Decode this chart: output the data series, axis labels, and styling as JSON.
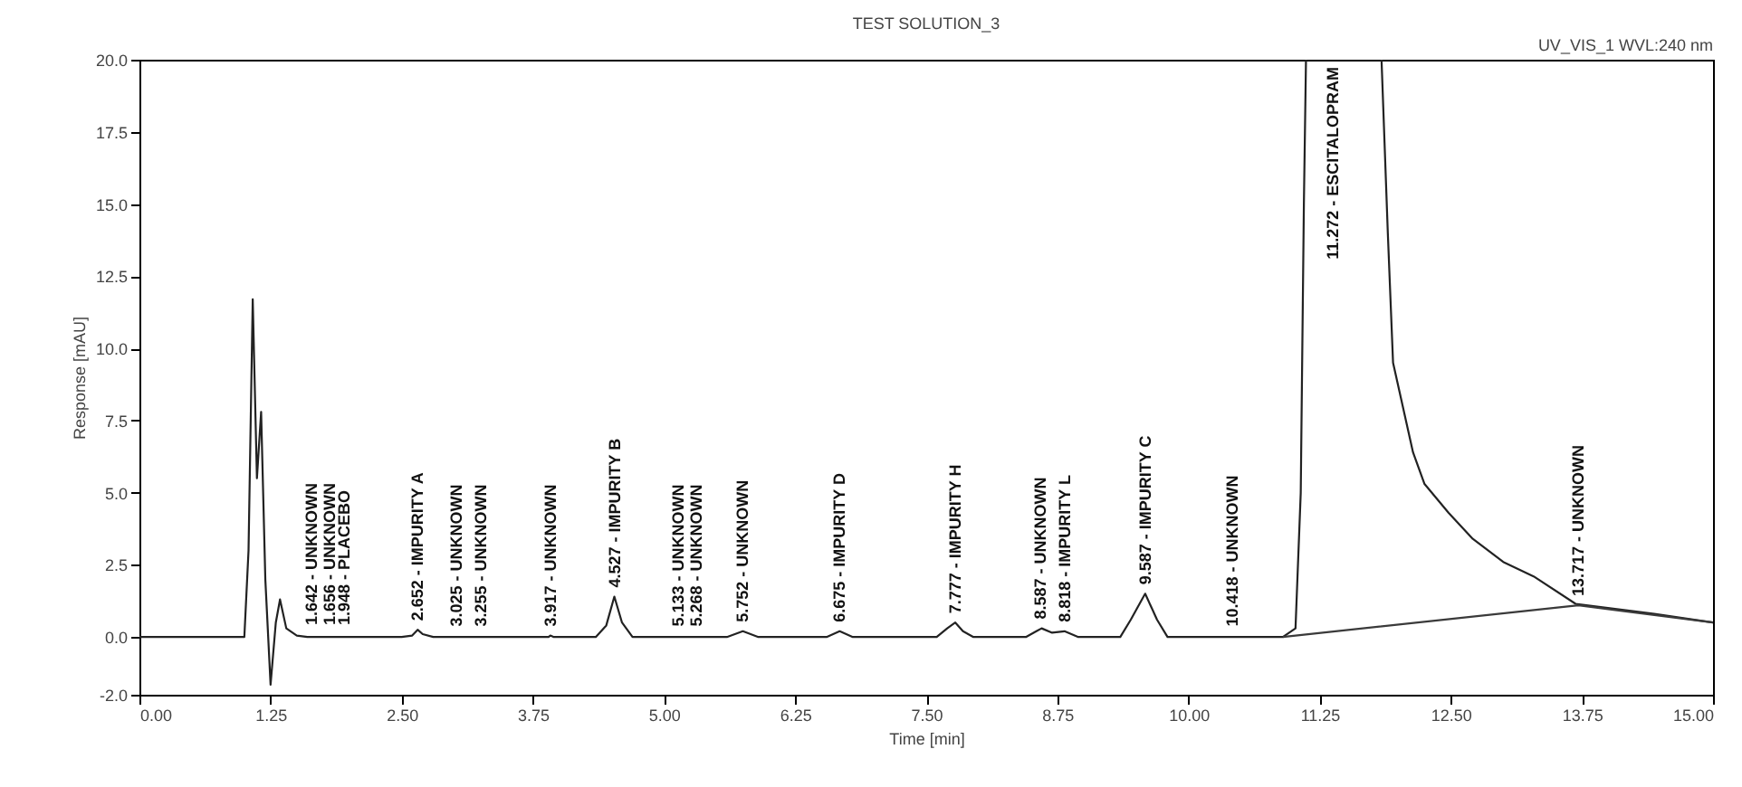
{
  "chart_data": {
    "type": "line",
    "title": "TEST SOLUTION_3",
    "xlabel": "Time [min]",
    "ylabel": "Response [mAU]",
    "xlim": [
      0,
      15
    ],
    "ylim": [
      -2,
      20
    ],
    "xticks": [
      {
        "value": 0,
        "label": "0.00"
      },
      {
        "value": 1.25,
        "label": "1.25"
      },
      {
        "value": 2.5,
        "label": "2.50"
      },
      {
        "value": 3.75,
        "label": "3.75"
      },
      {
        "value": 5,
        "label": "5.00"
      },
      {
        "value": 6.25,
        "label": "6.25"
      },
      {
        "value": 7.5,
        "label": "7.50"
      },
      {
        "value": 8.75,
        "label": "8.75"
      },
      {
        "value": 10,
        "label": "10.00"
      },
      {
        "value": 11.25,
        "label": "11.25"
      },
      {
        "value": 12.5,
        "label": "12.50"
      },
      {
        "value": 13.75,
        "label": "13.75"
      },
      {
        "value": 15,
        "label": "15.00"
      }
    ],
    "yticks": [
      {
        "value": -2,
        "label": "-2.0"
      },
      {
        "value": 0,
        "label": "0.0"
      },
      {
        "value": 2.5,
        "label": "2.5"
      },
      {
        "value": 5,
        "label": "5.0"
      },
      {
        "value": 7.5,
        "label": "7.5"
      },
      {
        "value": 10,
        "label": "10.0"
      },
      {
        "value": 12.5,
        "label": "12.5"
      },
      {
        "value": 15,
        "label": "15.0"
      },
      {
        "value": 17.5,
        "label": "17.5"
      },
      {
        "value": 20,
        "label": "20.0"
      }
    ],
    "grid": false,
    "marker": "none",
    "line_style": "solid",
    "series": [
      {
        "color": "#222222",
        "x": [
          0,
          1.0,
          1.04,
          1.08,
          1.12,
          1.16,
          1.2,
          1.25,
          1.3,
          1.34,
          1.4,
          1.5,
          1.6,
          2.5,
          2.6,
          2.652,
          2.7,
          2.8,
          3.9,
          3.917,
          3.95,
          4.35,
          4.45,
          4.527,
          4.6,
          4.7,
          5.6,
          5.752,
          5.9,
          6.55,
          6.675,
          6.8,
          7.6,
          7.7,
          7.777,
          7.85,
          7.95,
          8.45,
          8.55,
          8.6,
          8.7,
          8.818,
          8.95,
          9.35,
          9.45,
          9.587,
          9.7,
          9.8,
          10.4,
          10.9,
          11.02,
          11.07,
          11.1,
          11.12,
          11.272,
          11.84,
          11.9,
          11.95,
          12.14,
          12.25,
          12.48,
          12.71,
          13.0,
          13.29,
          13.69,
          14.44,
          15.0
        ],
        "values": [
          0,
          0,
          3,
          11.7,
          5.5,
          7.8,
          2,
          -1.65,
          0.5,
          1.3,
          0.3,
          0.05,
          0,
          0,
          0.05,
          0.25,
          0.1,
          0,
          0,
          0.05,
          0,
          0,
          0.4,
          1.4,
          0.5,
          0,
          0,
          0.2,
          0,
          0,
          0.2,
          0,
          0,
          0.3,
          0.5,
          0.2,
          0,
          0,
          0.2,
          0.3,
          0.15,
          0.2,
          0,
          0,
          0.6,
          1.5,
          0.6,
          0,
          0,
          0,
          0.3,
          5,
          15,
          20,
          null,
          20,
          14,
          9.5,
          6.4,
          5.3,
          4.3,
          3.4,
          2.6,
          2.1,
          1.15,
          0.8,
          0.5
        ]
      },
      {
        "color": "#3a3a3a",
        "x": [
          10.9,
          13.717,
          15
        ],
        "values": [
          0,
          1.1,
          0.5
        ]
      }
    ],
    "annotations": [
      "UV_VIS_1 WVL:240 nm",
      {
        "text": "1.642 - UNKNOWN",
        "x": 1.642,
        "y": 0.1
      },
      {
        "text": "1.656 - UNKNOWN",
        "x": 1.656,
        "y": 0.1
      },
      {
        "text": "1.948 - PLACEBO",
        "x": 1.948,
        "y": 0.1
      },
      {
        "text": "2.652 - IMPURITY A",
        "x": 2.652,
        "y": 0.25
      },
      {
        "text": "3.025 - UNKNOWN",
        "x": 3.025,
        "y": 0.05
      },
      {
        "text": "3.255 - UNKNOWN",
        "x": 3.255,
        "y": 0.05
      },
      {
        "text": "3.917 - UNKNOWN",
        "x": 3.917,
        "y": 0.05
      },
      {
        "text": "4.527 - IMPURITY B",
        "x": 4.527,
        "y": 1.4
      },
      {
        "text": "5.133 - UNKNOWN",
        "x": 5.133,
        "y": 0.05
      },
      {
        "text": "5.268 - UNKNOWN",
        "x": 5.268,
        "y": 0.05
      },
      {
        "text": "5.752 - UNKNOWN",
        "x": 5.752,
        "y": 0.2
      },
      {
        "text": "6.675 - IMPURITY D",
        "x": 6.675,
        "y": 0.2
      },
      {
        "text": "7.777 - IMPURITY H",
        "x": 7.777,
        "y": 0.5
      },
      {
        "text": "8.587 - UNKNOWN",
        "x": 8.587,
        "y": 0.3
      },
      {
        "text": "8.818 - IMPURITY L",
        "x": 8.818,
        "y": 0.2
      },
      {
        "text": "9.587 - IMPURITY C",
        "x": 9.587,
        "y": 1.5
      },
      {
        "text": "10.418 - UNKNOWN",
        "x": 10.418,
        "y": 0.05
      },
      "11.272 - ESCITALOPRAM",
      {
        "text": "13.717 - UNKNOWN",
        "x": 13.717,
        "y": 1.1
      }
    ]
  }
}
